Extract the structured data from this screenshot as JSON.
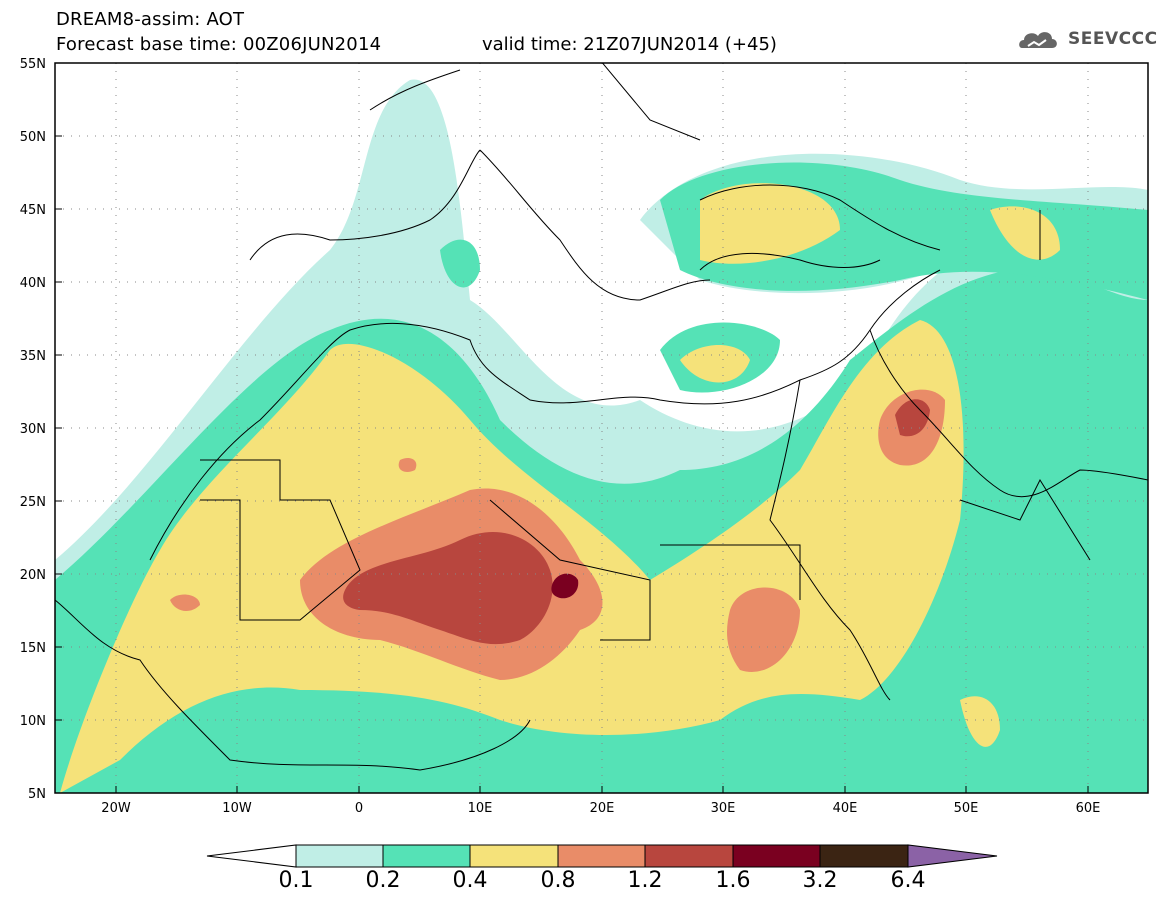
{
  "header": {
    "title": "DREAM8-assim: AOT",
    "base_time": "Forecast base time: 00Z06JUN2014",
    "valid_time": "valid time: 21Z07JUN2014 (+45)",
    "logo_text": "SEEVCCC",
    "logo_icon": "cloud-icon"
  },
  "map": {
    "lat_range": [
      5,
      55
    ],
    "lon_range": [
      -25,
      65
    ],
    "lat_labels": [
      "55N",
      "50N",
      "45N",
      "40N",
      "35N",
      "30N",
      "25N",
      "20N",
      "15N",
      "10N",
      "5N"
    ],
    "lon_labels": [
      "20W",
      "10W",
      "0",
      "10E",
      "20E",
      "30E",
      "40E",
      "50E",
      "60E"
    ],
    "grid": true
  },
  "colorbar": {
    "labels": [
      "0.1",
      "0.2",
      "0.4",
      "0.8",
      "1.2",
      "1.6",
      "3.2",
      "6.4"
    ],
    "colors": [
      "#ffffff",
      "#c0eee6",
      "#55e2b6",
      "#f5e27a",
      "#e98c68",
      "#b8463e",
      "#7a0020",
      "#3b2413",
      "#8b62a6"
    ]
  }
}
